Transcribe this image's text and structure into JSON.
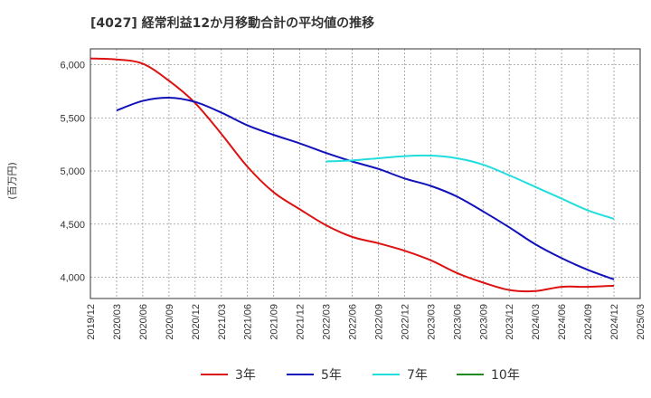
{
  "chart_data": {
    "type": "line",
    "title": "[4027]  経常利益12か月移動合計の平均値の推移",
    "ylabel": "(百万円)",
    "xlabel": "",
    "ylim": [
      3800,
      6150
    ],
    "yticks": [
      4000,
      4500,
      5000,
      5500,
      6000
    ],
    "ytick_labels": [
      "4,000",
      "4,500",
      "5,000",
      "5,500",
      "6,000"
    ],
    "xticks": [
      "2019/12",
      "2020/03",
      "2020/06",
      "2020/09",
      "2020/12",
      "2021/03",
      "2021/06",
      "2021/09",
      "2021/12",
      "2022/03",
      "2022/06",
      "2022/09",
      "2022/12",
      "2023/03",
      "2023/06",
      "2023/09",
      "2023/12",
      "2024/03",
      "2024/06",
      "2024/09",
      "2024/12",
      "2025/03"
    ],
    "grid": true,
    "legend_position": "bottom",
    "series": [
      {
        "name": "3年",
        "color": "#dd1111",
        "x": [
          "2019/12",
          "2020/03",
          "2020/06",
          "2020/09",
          "2020/12",
          "2021/03",
          "2021/06",
          "2021/09",
          "2021/12",
          "2022/03",
          "2022/06",
          "2022/09",
          "2022/12",
          "2023/03",
          "2023/06",
          "2023/09",
          "2023/12",
          "2024/03",
          "2024/06",
          "2024/09",
          "2024/12"
        ],
        "values": [
          6060,
          6050,
          6010,
          5850,
          5640,
          5350,
          5040,
          4800,
          4640,
          4490,
          4380,
          4320,
          4250,
          4160,
          4040,
          3950,
          3880,
          3870,
          3910,
          3910,
          3920
        ]
      },
      {
        "name": "5年",
        "color": "#1111bb",
        "x": [
          "2020/03",
          "2020/06",
          "2020/09",
          "2020/12",
          "2021/03",
          "2021/06",
          "2021/09",
          "2021/12",
          "2022/03",
          "2022/06",
          "2022/09",
          "2022/12",
          "2023/03",
          "2023/06",
          "2023/09",
          "2023/12",
          "2024/03",
          "2024/06",
          "2024/09",
          "2024/12"
        ],
        "values": [
          5570,
          5660,
          5690,
          5650,
          5550,
          5430,
          5340,
          5260,
          5170,
          5090,
          5020,
          4930,
          4860,
          4760,
          4620,
          4470,
          4310,
          4180,
          4070,
          3980
        ]
      },
      {
        "name": "7年",
        "color": "#22dddd",
        "x": [
          "2022/03",
          "2022/06",
          "2022/09",
          "2022/12",
          "2023/03",
          "2023/06",
          "2023/09",
          "2023/12",
          "2024/03",
          "2024/06",
          "2024/09",
          "2024/12"
        ],
        "values": [
          5090,
          5100,
          5120,
          5140,
          5145,
          5120,
          5060,
          4960,
          4850,
          4740,
          4630,
          4550
        ]
      },
      {
        "name": "10年",
        "color": "#228822",
        "x": [],
        "values": []
      }
    ]
  }
}
